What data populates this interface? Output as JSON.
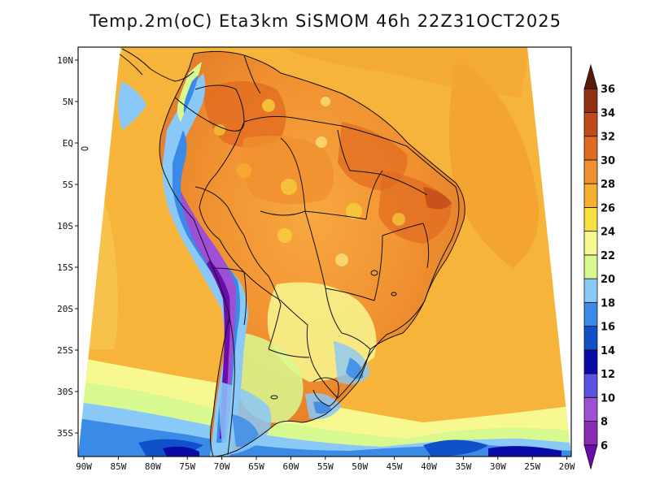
{
  "title": "Temp.2m(oC) Eta3km SiSMOM 46h 22Z31OCT2025",
  "lat_labels": [
    "10N",
    "5N",
    "EQ",
    "5S",
    "10S",
    "15S",
    "20S",
    "25S",
    "30S",
    "35S"
  ],
  "lon_labels": [
    "90W",
    "85W",
    "80W",
    "75W",
    "70W",
    "65W",
    "60W",
    "55W",
    "50W",
    "45W",
    "40W",
    "35W",
    "30W",
    "25W",
    "20W"
  ],
  "colorbar": {
    "labels": [
      "6",
      "8",
      "10",
      "12",
      "14",
      "16",
      "18",
      "20",
      "22",
      "24",
      "26",
      "28",
      "30",
      "32",
      "34",
      "36"
    ],
    "colors": [
      "#6a0dad",
      "#8a2bb8",
      "#9e4fd6",
      "#5a52e0",
      "#0a0aa8",
      "#1050c8",
      "#3a8ae8",
      "#8ac8f8",
      "#d8f890",
      "#f8f890",
      "#f8e040",
      "#f8b030",
      "#f09030",
      "#e06a20",
      "#c04a18",
      "#903010",
      "#5a1a08"
    ]
  }
}
